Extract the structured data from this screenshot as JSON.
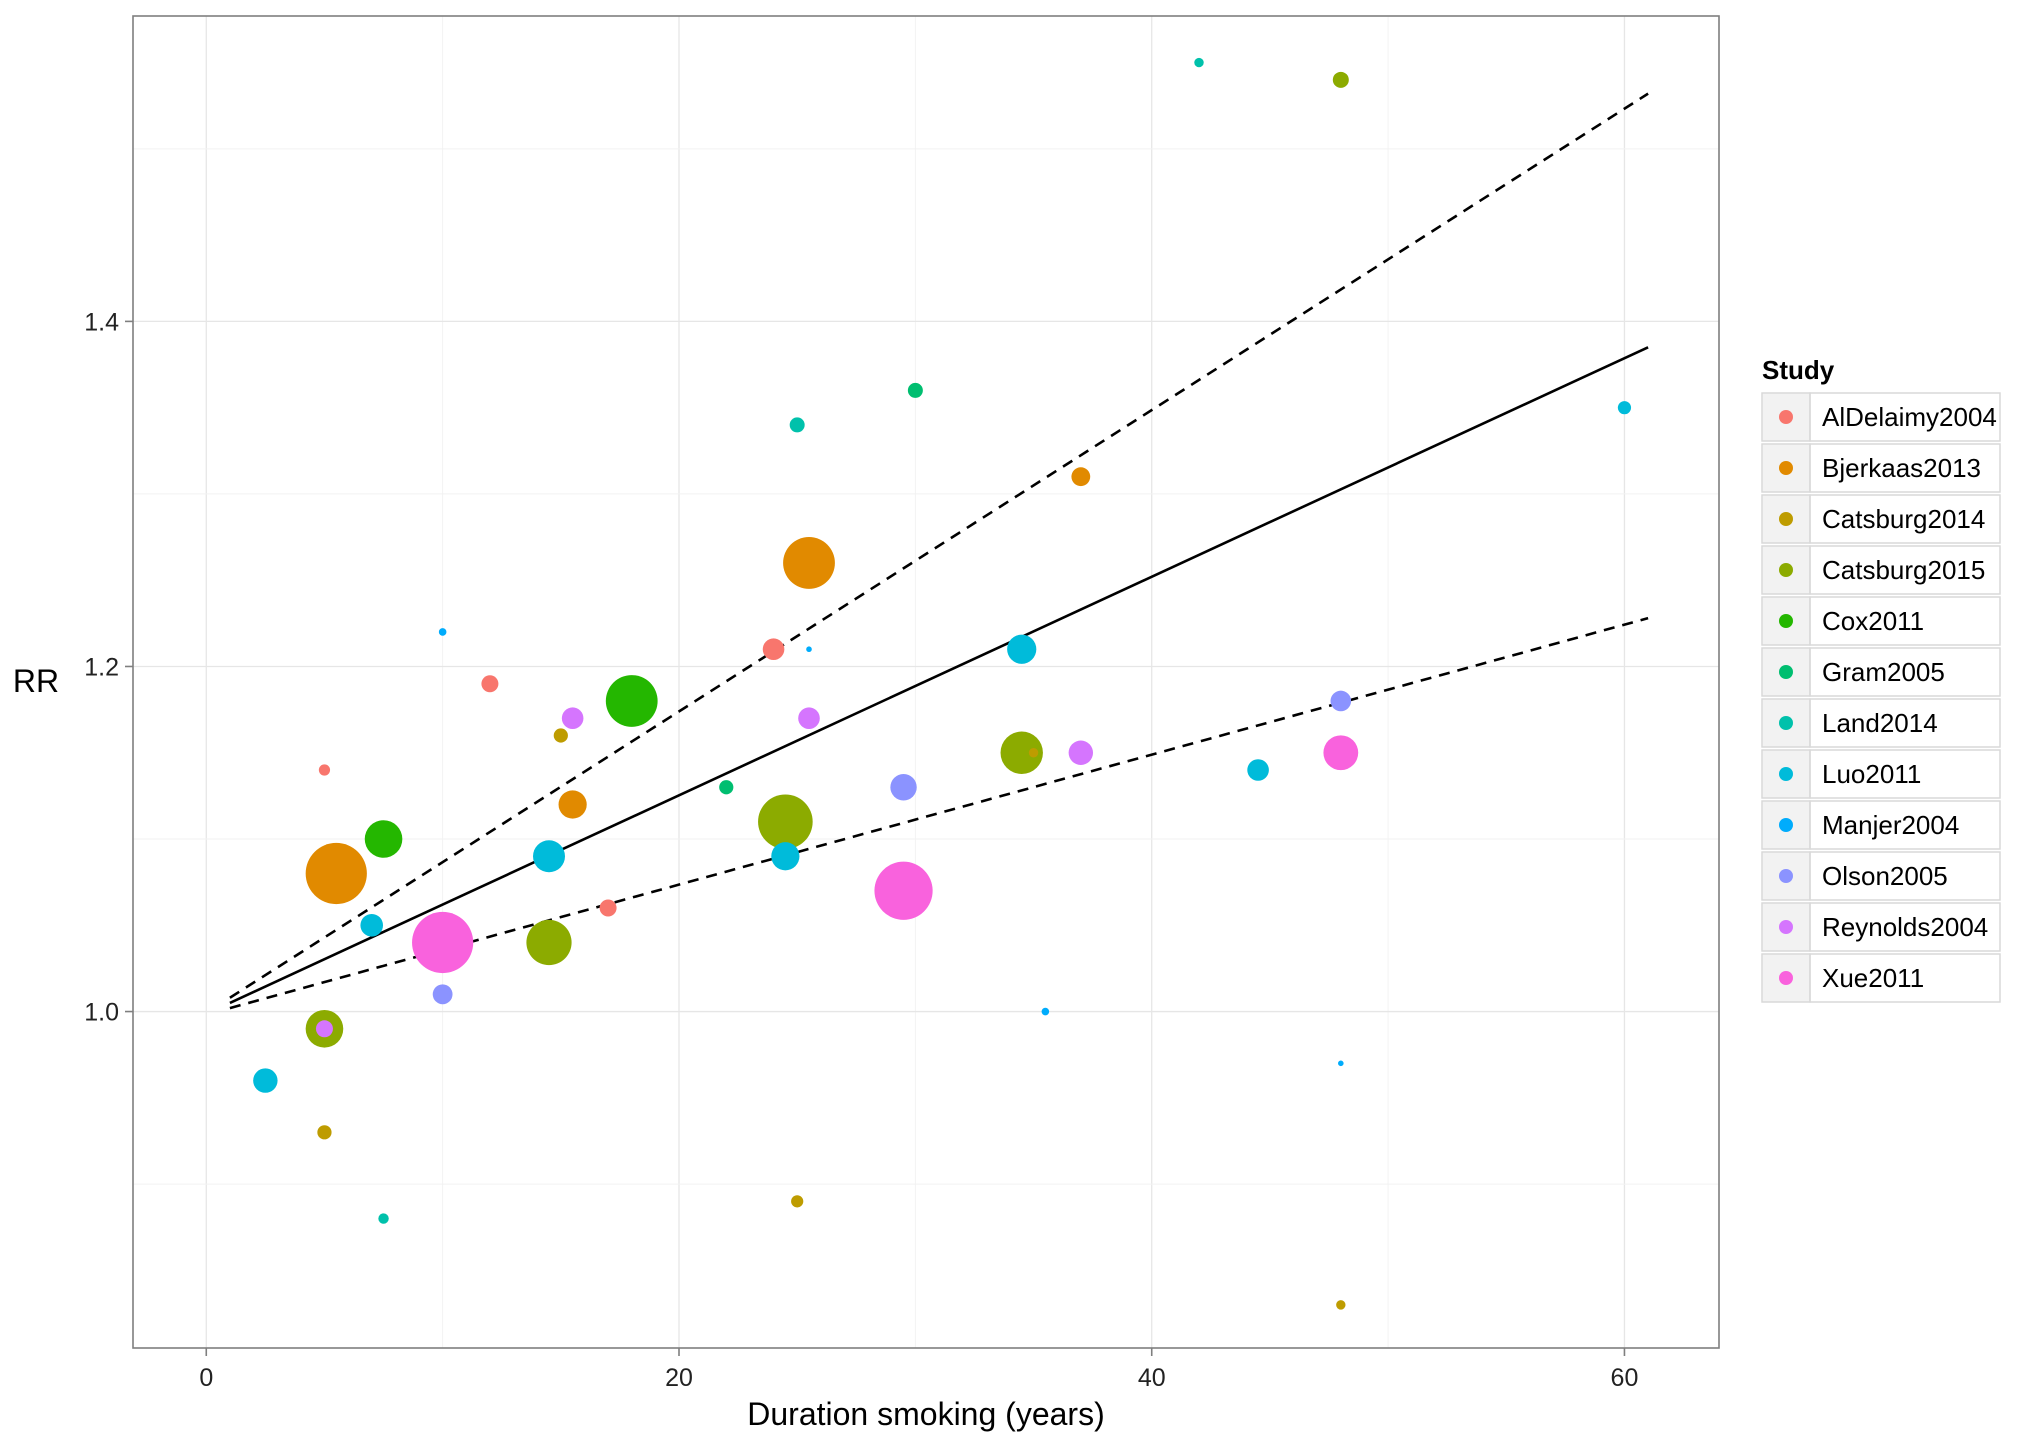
{
  "chart_data": {
    "type": "scatter",
    "title": "",
    "xlabel": "Duration smoking (years)",
    "ylabel": "RR",
    "xlim": [
      -3.1,
      64.0
    ],
    "ylim": [
      0.805,
      1.577
    ],
    "x_ticks": [
      0,
      20,
      40,
      60
    ],
    "x_tick_labels": [
      "0",
      "20",
      "40",
      "60"
    ],
    "y_ticks": [
      1.0,
      1.2,
      1.4
    ],
    "y_tick_labels": [
      "1.0",
      "1.2",
      "1.4"
    ],
    "grid": true,
    "legend_title": "Study",
    "legend_position": "right",
    "size_note": "point size proportional to study weight (no size legend shown)",
    "series": [
      {
        "name": "AlDelaimy2004",
        "color": "#F8766D",
        "points": [
          {
            "x": 5,
            "y": 1.14,
            "w": 1.2
          },
          {
            "x": 12,
            "y": 1.19,
            "w": 1.8
          },
          {
            "x": 17,
            "y": 1.06,
            "w": 1.8
          },
          {
            "x": 24,
            "y": 1.21,
            "w": 2.3
          }
        ]
      },
      {
        "name": "Bjerkaas2013",
        "color": "#E18A00",
        "points": [
          {
            "x": 5.5,
            "y": 1.08,
            "w": 6.5
          },
          {
            "x": 15.5,
            "y": 1.12,
            "w": 3.0
          },
          {
            "x": 25.5,
            "y": 1.26,
            "w": 5.5
          },
          {
            "x": 37,
            "y": 1.31,
            "w": 2.0
          }
        ]
      },
      {
        "name": "Catsburg2014",
        "color": "#BE9C00",
        "points": [
          {
            "x": 5,
            "y": 0.93,
            "w": 1.5
          },
          {
            "x": 15,
            "y": 1.16,
            "w": 1.5
          },
          {
            "x": 25,
            "y": 0.89,
            "w": 1.3
          },
          {
            "x": 35,
            "y": 1.15,
            "w": 1.0
          },
          {
            "x": 48,
            "y": 0.83,
            "w": 1.0
          }
        ]
      },
      {
        "name": "Catsburg2015",
        "color": "#8CAB00",
        "points": [
          {
            "x": 5,
            "y": 0.99,
            "w": 4.0
          },
          {
            "x": 14.5,
            "y": 1.04,
            "w": 4.8
          },
          {
            "x": 24.5,
            "y": 1.11,
            "w": 5.8
          },
          {
            "x": 34.5,
            "y": 1.15,
            "w": 4.5
          },
          {
            "x": 48,
            "y": 1.54,
            "w": 1.7
          }
        ]
      },
      {
        "name": "Cox2011",
        "color": "#24B700",
        "points": [
          {
            "x": 7.5,
            "y": 1.1,
            "w": 4.0
          },
          {
            "x": 18,
            "y": 1.18,
            "w": 5.5
          }
        ]
      },
      {
        "name": "Gram2005",
        "color": "#00BE70",
        "points": [
          {
            "x": 22,
            "y": 1.13,
            "w": 1.5
          },
          {
            "x": 30,
            "y": 1.36,
            "w": 1.6
          }
        ]
      },
      {
        "name": "Land2014",
        "color": "#00C1AB",
        "points": [
          {
            "x": 7.5,
            "y": 0.88,
            "w": 1.1
          },
          {
            "x": 25,
            "y": 1.34,
            "w": 1.6
          },
          {
            "x": 42,
            "y": 1.55,
            "w": 1.0
          }
        ]
      },
      {
        "name": "Luo2011",
        "color": "#00BBDA",
        "points": [
          {
            "x": 2.5,
            "y": 0.96,
            "w": 2.6
          },
          {
            "x": 7,
            "y": 1.05,
            "w": 2.4
          },
          {
            "x": 14.5,
            "y": 1.09,
            "w": 3.4
          },
          {
            "x": 24.5,
            "y": 1.09,
            "w": 3.0
          },
          {
            "x": 34.5,
            "y": 1.21,
            "w": 3.1
          },
          {
            "x": 44.5,
            "y": 1.14,
            "w": 2.3
          },
          {
            "x": 60,
            "y": 1.35,
            "w": 1.4
          }
        ]
      },
      {
        "name": "Manjer2004",
        "color": "#00ACFC",
        "points": [
          {
            "x": 10,
            "y": 1.22,
            "w": 0.8
          },
          {
            "x": 25.5,
            "y": 1.21,
            "w": 0.6
          },
          {
            "x": 35.5,
            "y": 1.0,
            "w": 0.8
          },
          {
            "x": 48,
            "y": 0.97,
            "w": 0.6
          }
        ]
      },
      {
        "name": "Olson2005",
        "color": "#8B93FF",
        "points": [
          {
            "x": 10,
            "y": 1.01,
            "w": 2.1
          },
          {
            "x": 29.5,
            "y": 1.13,
            "w": 2.8
          },
          {
            "x": 48,
            "y": 1.18,
            "w": 2.2
          }
        ]
      },
      {
        "name": "Reynolds2004",
        "color": "#D575FE",
        "points": [
          {
            "x": 5,
            "y": 0.99,
            "w": 1.8
          },
          {
            "x": 15.5,
            "y": 1.17,
            "w": 2.3
          },
          {
            "x": 25.5,
            "y": 1.17,
            "w": 2.3
          },
          {
            "x": 37,
            "y": 1.15,
            "w": 2.6
          }
        ]
      },
      {
        "name": "Xue2011",
        "color": "#F962DD",
        "points": [
          {
            "x": 10,
            "y": 1.04,
            "w": 6.5
          },
          {
            "x": 29.5,
            "y": 1.07,
            "w": 6.2
          },
          {
            "x": 48,
            "y": 1.15,
            "w": 3.7
          }
        ]
      }
    ],
    "fit_lines": [
      {
        "style": "solid",
        "x": [
          1,
          61
        ],
        "y": [
          1.005,
          1.385
        ]
      },
      {
        "style": "dashed",
        "x": [
          1,
          61
        ],
        "y": [
          1.008,
          1.532
        ]
      },
      {
        "style": "dashed",
        "x": [
          1,
          61
        ],
        "y": [
          1.002,
          1.228
        ]
      }
    ]
  }
}
